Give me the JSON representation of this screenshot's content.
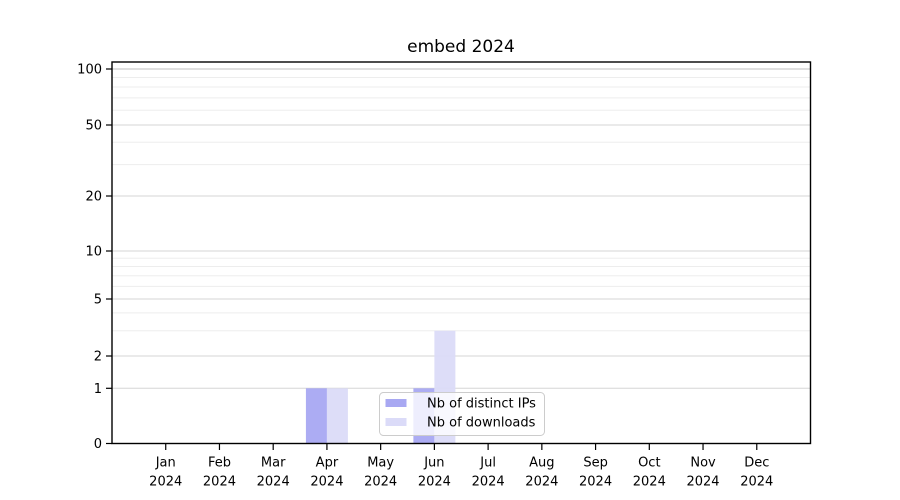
{
  "chart_data": {
    "type": "bar",
    "title": "embed 2024",
    "categories": [
      "Jan 2024",
      "Feb 2024",
      "Mar 2024",
      "Apr 2024",
      "May 2024",
      "Jun 2024",
      "Jul 2024",
      "Aug 2024",
      "Sep 2024",
      "Oct 2024",
      "Nov 2024",
      "Dec 2024"
    ],
    "series": [
      {
        "name": "Nb of distinct IPs",
        "color": "#a8a8f2",
        "values": [
          0,
          0,
          0,
          1,
          0,
          1,
          0,
          0,
          0,
          0,
          0,
          0
        ]
      },
      {
        "name": "Nb of downloads",
        "color": "#dbdbf8",
        "values": [
          0,
          0,
          0,
          1,
          0,
          3,
          0,
          0,
          0,
          0,
          0,
          0
        ]
      }
    ],
    "y_ticks": [
      0,
      1,
      2,
      5,
      10,
      20,
      50,
      100
    ],
    "y_minor_ticks": [
      3,
      4,
      6,
      7,
      8,
      9,
      30,
      40,
      60,
      70,
      80,
      90
    ],
    "ylim": [
      0,
      100
    ],
    "yscale": "log-above-1",
    "grid": "horizontal major and minor",
    "legend_position": "lower center"
  },
  "colors": {
    "grid_major": "#d6d6d6",
    "grid_top": "#bfbfbf",
    "grid_minor": "#ededed",
    "spine": "#000000",
    "legend_border": "#cccccc",
    "legend_bg": "#ffffff"
  }
}
